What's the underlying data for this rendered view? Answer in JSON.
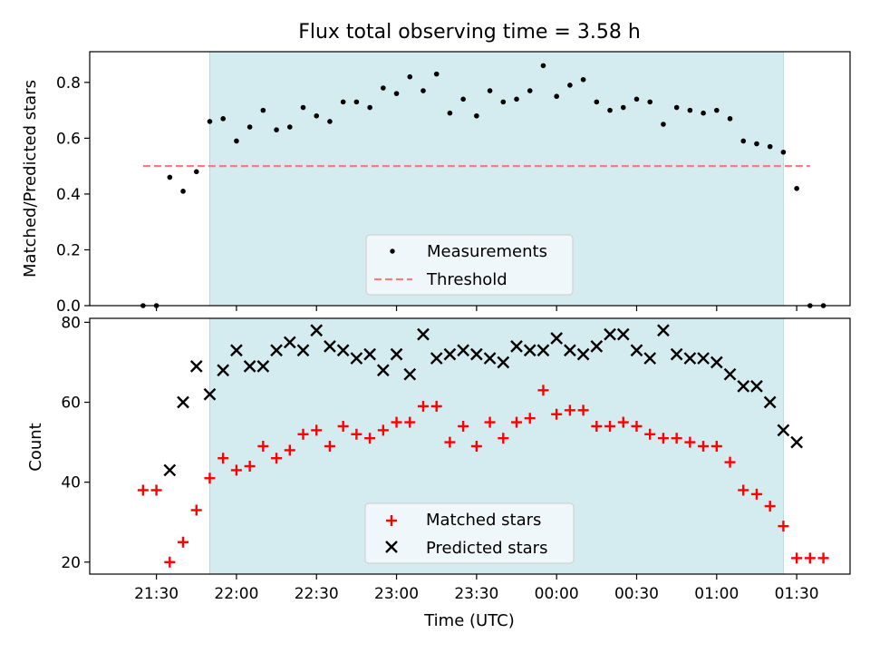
{
  "chart_data": [
    {
      "type": "scatter",
      "title": "Flux total observing time = 3.58 h",
      "xlabel": "",
      "ylabel": "Matched/Predicted stars",
      "ylim": [
        0,
        0.91
      ],
      "yticks": [
        "0.0",
        "0.2",
        "0.4",
        "0.6",
        "0.8"
      ],
      "ytick_values": [
        0,
        0.2,
        0.4,
        0.6,
        0.8
      ],
      "xlim": [
        "21:05",
        "01:50"
      ],
      "shaded_region": [
        "21:50",
        "01:25"
      ],
      "shade_color": "#d4ebf0",
      "series": [
        {
          "name": "Measurements",
          "marker": "dot",
          "color": "#000000",
          "x": [
            "21:25",
            "21:30",
            "21:35",
            "21:40",
            "21:45",
            "21:50",
            "21:55",
            "22:00",
            "22:05",
            "22:10",
            "22:15",
            "22:20",
            "22:25",
            "22:30",
            "22:35",
            "22:40",
            "22:45",
            "22:50",
            "22:55",
            "23:00",
            "23:05",
            "23:10",
            "23:15",
            "23:20",
            "23:25",
            "23:30",
            "23:35",
            "23:40",
            "23:45",
            "23:50",
            "23:55",
            "00:00",
            "00:05",
            "00:10",
            "00:15",
            "00:20",
            "00:25",
            "00:30",
            "00:35",
            "00:40",
            "00:45",
            "00:50",
            "00:55",
            "01:00",
            "01:05",
            "01:10",
            "01:15",
            "01:20",
            "01:25",
            "01:30",
            "01:35",
            "01:40"
          ],
          "y": [
            0.0,
            0.0,
            0.46,
            0.41,
            0.48,
            0.66,
            0.67,
            0.59,
            0.64,
            0.7,
            0.63,
            0.64,
            0.71,
            0.68,
            0.66,
            0.73,
            0.73,
            0.71,
            0.78,
            0.76,
            0.82,
            0.77,
            0.83,
            0.69,
            0.74,
            0.68,
            0.77,
            0.73,
            0.74,
            0.77,
            0.86,
            0.75,
            0.79,
            0.81,
            0.73,
            0.7,
            0.71,
            0.74,
            0.73,
            0.65,
            0.71,
            0.7,
            0.69,
            0.7,
            0.67,
            0.59,
            0.58,
            0.57,
            0.55,
            0.42,
            0.0,
            0.0
          ]
        },
        {
          "name": "Threshold",
          "marker": "dashed-line",
          "color": "#f08080",
          "x": [
            "21:25",
            "01:35"
          ],
          "y": [
            0.5,
            0.5
          ]
        }
      ],
      "legend": {
        "placement": "lower-center",
        "entries": [
          "Measurements",
          "Threshold"
        ]
      }
    },
    {
      "type": "scatter",
      "title": "",
      "xlabel": "Time (UTC)",
      "ylabel": "Count",
      "ylim": [
        17,
        81
      ],
      "yticks": [
        "20",
        "40",
        "60",
        "80"
      ],
      "ytick_values": [
        20,
        40,
        60,
        80
      ],
      "xlim": [
        "21:05",
        "01:50"
      ],
      "xticks": [
        "21:30",
        "22:00",
        "22:30",
        "23:00",
        "23:30",
        "00:00",
        "00:30",
        "01:00",
        "01:30"
      ],
      "shaded_region": [
        "21:50",
        "01:25"
      ],
      "shade_color": "#d4ebf0",
      "series": [
        {
          "name": "Matched stars",
          "marker": "plus",
          "color": "#ff0000",
          "x": [
            "21:25",
            "21:30",
            "21:35",
            "21:40",
            "21:45",
            "21:50",
            "21:55",
            "22:00",
            "22:05",
            "22:10",
            "22:15",
            "22:20",
            "22:25",
            "22:30",
            "22:35",
            "22:40",
            "22:45",
            "22:50",
            "22:55",
            "23:00",
            "23:05",
            "23:10",
            "23:15",
            "23:20",
            "23:25",
            "23:30",
            "23:35",
            "23:40",
            "23:45",
            "23:50",
            "23:55",
            "00:00",
            "00:05",
            "00:10",
            "00:15",
            "00:20",
            "00:25",
            "00:30",
            "00:35",
            "00:40",
            "00:45",
            "00:50",
            "00:55",
            "01:00",
            "01:05",
            "01:10",
            "01:15",
            "01:20",
            "01:25",
            "01:30",
            "01:35",
            "01:40"
          ],
          "y": [
            38,
            38,
            20,
            25,
            33,
            41,
            46,
            43,
            44,
            49,
            46,
            48,
            52,
            53,
            49,
            54,
            52,
            51,
            53,
            55,
            55,
            59,
            59,
            50,
            54,
            49,
            55,
            51,
            55,
            56,
            63,
            57,
            58,
            58,
            54,
            54,
            55,
            54,
            52,
            51,
            51,
            50,
            49,
            49,
            45,
            38,
            37,
            34,
            29,
            21,
            21,
            21
          ]
        },
        {
          "name": "Predicted stars",
          "marker": "x",
          "color": "#000000",
          "x": [
            "21:35",
            "21:40",
            "21:45",
            "21:50",
            "21:55",
            "22:00",
            "22:05",
            "22:10",
            "22:15",
            "22:20",
            "22:25",
            "22:30",
            "22:35",
            "22:40",
            "22:45",
            "22:50",
            "22:55",
            "23:00",
            "23:05",
            "23:10",
            "23:15",
            "23:20",
            "23:25",
            "23:30",
            "23:35",
            "23:40",
            "23:45",
            "23:50",
            "23:55",
            "00:00",
            "00:05",
            "00:10",
            "00:15",
            "00:20",
            "00:25",
            "00:30",
            "00:35",
            "00:40",
            "00:45",
            "00:50",
            "00:55",
            "01:00",
            "01:05",
            "01:10",
            "01:15",
            "01:20",
            "01:25",
            "01:30"
          ],
          "y": [
            43,
            60,
            69,
            62,
            68,
            73,
            69,
            69,
            73,
            75,
            73,
            78,
            74,
            73,
            71,
            72,
            68,
            72,
            67,
            77,
            71,
            72,
            73,
            72,
            71,
            70,
            74,
            73,
            73,
            76,
            73,
            72,
            74,
            77,
            77,
            73,
            71,
            78,
            72,
            71,
            71,
            70,
            67,
            64,
            64,
            60,
            53,
            50
          ]
        }
      ],
      "legend": {
        "placement": "lower-center",
        "entries": [
          "Matched stars",
          "Predicted stars"
        ]
      }
    }
  ]
}
